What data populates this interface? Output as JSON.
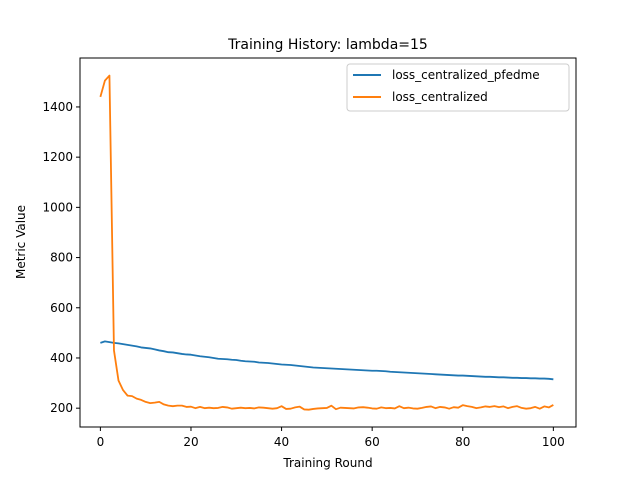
{
  "chart_data": {
    "type": "line",
    "title": "Training History: lambda=15",
    "xlabel": "Training Round",
    "ylabel": "Metric Value",
    "xlim": [
      -4.5,
      105
    ],
    "ylim": [
      125,
      1595
    ],
    "xticks": [
      0,
      20,
      40,
      60,
      80,
      100
    ],
    "yticks": [
      200,
      400,
      600,
      800,
      1000,
      1200,
      1400
    ],
    "grid": false,
    "legend_position": "top-right",
    "series": [
      {
        "name": "loss_centralized_pfedme",
        "color": "#1f77b4",
        "x": [
          0,
          1,
          2,
          3,
          4,
          5,
          6,
          7,
          8,
          9,
          10,
          11,
          12,
          13,
          14,
          15,
          16,
          17,
          18,
          19,
          20,
          21,
          22,
          23,
          24,
          25,
          26,
          27,
          28,
          29,
          30,
          31,
          32,
          33,
          34,
          35,
          36,
          37,
          38,
          39,
          40,
          41,
          42,
          43,
          44,
          45,
          46,
          47,
          48,
          49,
          50,
          51,
          52,
          53,
          54,
          55,
          56,
          57,
          58,
          59,
          60,
          61,
          62,
          63,
          64,
          65,
          66,
          67,
          68,
          69,
          70,
          71,
          72,
          73,
          74,
          75,
          76,
          77,
          78,
          79,
          80,
          81,
          82,
          83,
          84,
          85,
          86,
          87,
          88,
          89,
          90,
          91,
          92,
          93,
          94,
          95,
          96,
          97,
          98,
          99,
          100
        ],
        "y": [
          460,
          466,
          463,
          460,
          458,
          455,
          452,
          449,
          446,
          442,
          440,
          438,
          434,
          430,
          427,
          423,
          422,
          419,
          416,
          414,
          413,
          410,
          407,
          405,
          403,
          400,
          397,
          396,
          395,
          393,
          392,
          389,
          387,
          386,
          385,
          382,
          381,
          380,
          378,
          376,
          374,
          373,
          372,
          370,
          368,
          366,
          364,
          362,
          361,
          360,
          359,
          358,
          357,
          356,
          355,
          354,
          353,
          352,
          351,
          350,
          349,
          349,
          348,
          347,
          345,
          344,
          343,
          342,
          341,
          340,
          339,
          338,
          337,
          336,
          335,
          334,
          333,
          332,
          331,
          330,
          330,
          329,
          328,
          327,
          326,
          325,
          325,
          324,
          323,
          323,
          322,
          321,
          321,
          320,
          320,
          319,
          319,
          318,
          318,
          317,
          315
        ]
      },
      {
        "name": "loss_centralized",
        "color": "#ff7f0e",
        "x": [
          0,
          1,
          2,
          3,
          4,
          5,
          6,
          7,
          8,
          9,
          10,
          11,
          12,
          13,
          14,
          15,
          16,
          17,
          18,
          19,
          20,
          21,
          22,
          23,
          24,
          25,
          26,
          27,
          28,
          29,
          30,
          31,
          32,
          33,
          34,
          35,
          36,
          37,
          38,
          39,
          40,
          41,
          42,
          43,
          44,
          45,
          46,
          47,
          48,
          49,
          50,
          51,
          52,
          53,
          54,
          55,
          56,
          57,
          58,
          59,
          60,
          61,
          62,
          63,
          64,
          65,
          66,
          67,
          68,
          69,
          70,
          71,
          72,
          73,
          74,
          75,
          76,
          77,
          78,
          79,
          80,
          81,
          82,
          83,
          84,
          85,
          86,
          87,
          88,
          89,
          90,
          91,
          92,
          93,
          94,
          95,
          96,
          97,
          98,
          99,
          100
        ],
        "y": [
          1440,
          1505,
          1525,
          430,
          310,
          272,
          250,
          248,
          238,
          233,
          225,
          220,
          222,
          225,
          215,
          210,
          208,
          210,
          210,
          205,
          206,
          200,
          205,
          200,
          202,
          200,
          201,
          205,
          203,
          198,
          200,
          202,
          200,
          201,
          199,
          203,
          202,
          200,
          198,
          200,
          208,
          197,
          198,
          203,
          206,
          195,
          194,
          197,
          199,
          200,
          201,
          210,
          196,
          202,
          201,
          200,
          199,
          203,
          204,
          202,
          199,
          198,
          203,
          200,
          201,
          199,
          208,
          200,
          202,
          199,
          198,
          201,
          205,
          207,
          200,
          205,
          203,
          198,
          204,
          202,
          212,
          208,
          205,
          200,
          203,
          207,
          205,
          208,
          204,
          207,
          200,
          205,
          208,
          201,
          198,
          200,
          205,
          198,
          207,
          203,
          213
        ]
      }
    ]
  }
}
